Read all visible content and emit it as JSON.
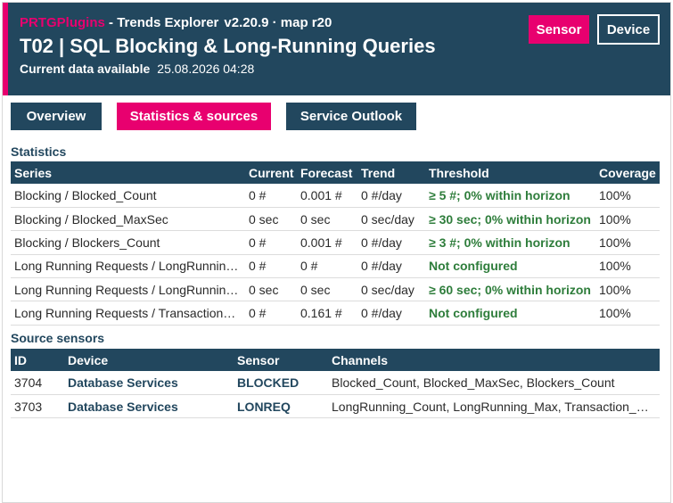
{
  "header": {
    "brand": "PRTGPlugins",
    "separator": " - ",
    "app_name": "Trends Explorer",
    "version": "v2.20.9 · map r20",
    "title": "T02 | SQL Blocking & Long-Running Queries",
    "data_label": "Current data available",
    "data_timestamp": "25.08.2026 04:28",
    "sensor_button": "Sensor",
    "device_button": "Device"
  },
  "tabs": [
    {
      "label": "Overview",
      "active": false
    },
    {
      "label": "Statistics & sources",
      "active": true
    },
    {
      "label": "Service Outlook",
      "active": false
    }
  ],
  "statistics": {
    "title": "Statistics",
    "columns": [
      "Series",
      "Current",
      "Forecast",
      "Trend",
      "Threshold",
      "Coverage"
    ],
    "rows": [
      {
        "series": "Blocking / Blocked_Count",
        "current": "0 #",
        "forecast": "0.001 #",
        "trend": "0 #/day",
        "threshold": "≥ 5 #; 0% within horizon",
        "coverage": "100%"
      },
      {
        "series": "Blocking / Blocked_MaxSec",
        "current": "0 sec",
        "forecast": "0 sec",
        "trend": "0 sec/day",
        "threshold": "≥ 30 sec; 0% within horizon",
        "coverage": "100%"
      },
      {
        "series": "Blocking / Blockers_Count",
        "current": "0 #",
        "forecast": "0.001 #",
        "trend": "0 #/day",
        "threshold": "≥ 3 #; 0% within horizon",
        "coverage": "100%"
      },
      {
        "series": "Long Running Requests / LongRunning_Count",
        "current": "0 #",
        "forecast": "0 #",
        "trend": "0 #/day",
        "threshold": "Not configured",
        "coverage": "100%"
      },
      {
        "series": "Long Running Requests / LongRunning_Max",
        "current": "0 sec",
        "forecast": "0 sec",
        "trend": "0 sec/day",
        "threshold": "≥ 60 sec; 0% within horizon",
        "coverage": "100%"
      },
      {
        "series": "Long Running Requests / Transaction_Count",
        "current": "0 #",
        "forecast": "0.161 #",
        "trend": "0 #/day",
        "threshold": "Not configured",
        "coverage": "100%"
      }
    ]
  },
  "sources": {
    "title": "Source sensors",
    "columns": [
      "ID",
      "Device",
      "Sensor",
      "Channels"
    ],
    "rows": [
      {
        "id": "3704",
        "device": "Database Services",
        "sensor": "BLOCKED",
        "channels": "Blocked_Count, Blocked_MaxSec, Blockers_Count"
      },
      {
        "id": "3703",
        "device": "Database Services",
        "sensor": "LONREQ",
        "channels": "LongRunning_Count, LongRunning_Max, Transaction_Count"
      }
    ]
  },
  "colors": {
    "header_bg": "#22475e",
    "accent": "#e8006f",
    "threshold_green": "#2e7d3b"
  }
}
